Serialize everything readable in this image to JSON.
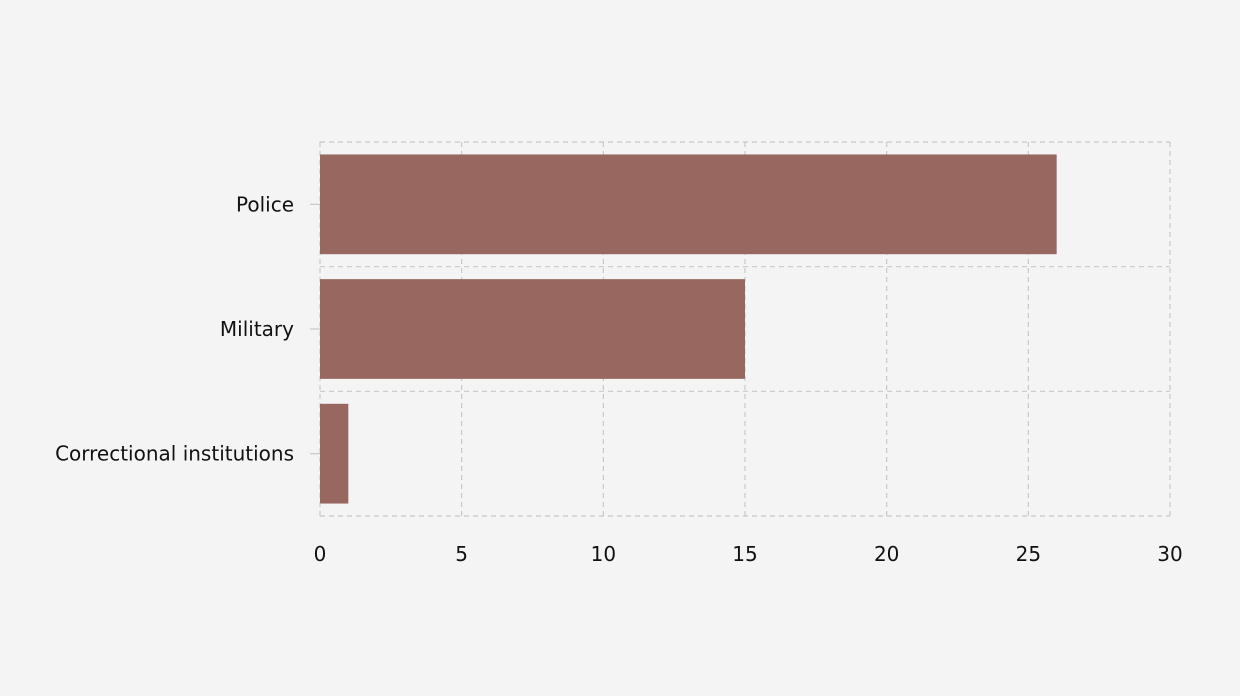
{
  "colors": {
    "background": "#f4f4f4",
    "bar": "#98675f",
    "grid": "#c8c8c8",
    "text": "#111111"
  },
  "chart_data": {
    "type": "bar",
    "orientation": "horizontal",
    "categories": [
      "Police",
      "Military",
      "Correctional institutions"
    ],
    "values": [
      26,
      15,
      1
    ],
    "xlim": [
      0,
      30
    ],
    "xticks": [
      0,
      5,
      10,
      15,
      20,
      25,
      30
    ],
    "grid": true,
    "grid_style": "dashed",
    "legend": "none"
  }
}
